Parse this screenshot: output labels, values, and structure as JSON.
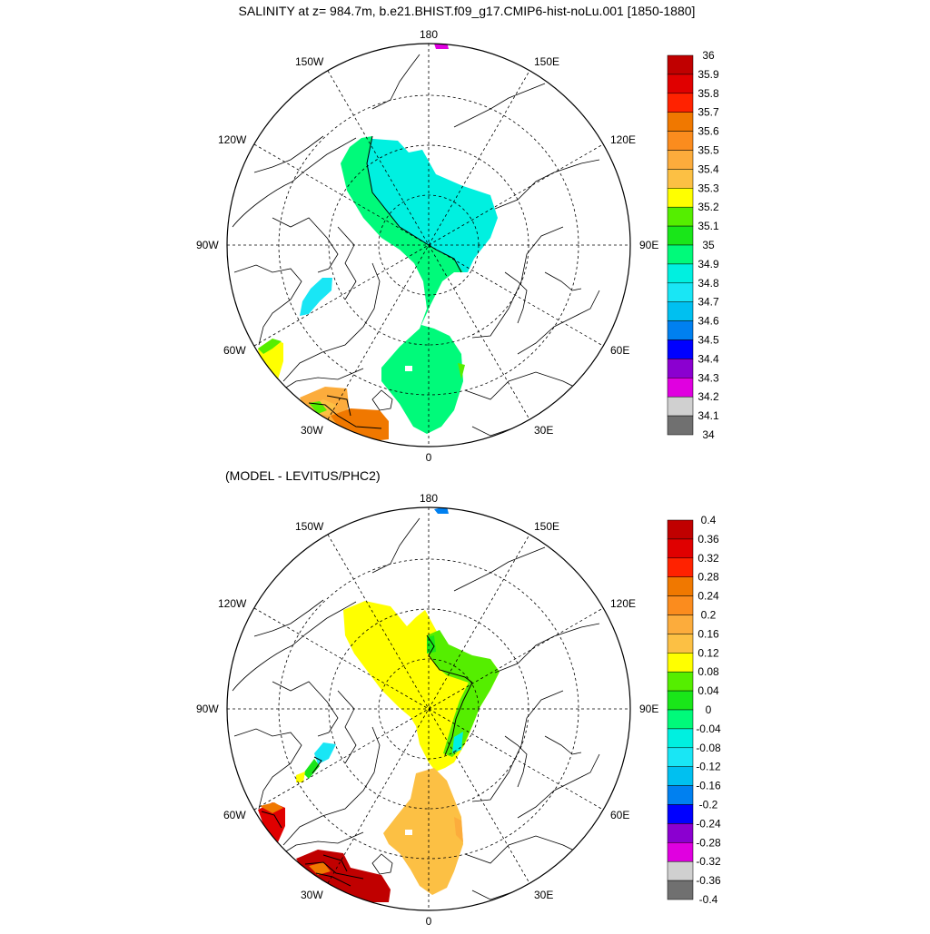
{
  "figure": {
    "title": "SALINITY at z= 984.7m, b.e21.BHIST.f09_g17.CMIP6-hist-noLu.001 [1850-1880]",
    "subtitle": "(MODEL - LEVITUS/PHC2)"
  },
  "longitude_labels": {
    "lon_180": "180",
    "lon_150w": "150W",
    "lon_150e": "150E",
    "lon_120w": "120W",
    "lon_120e": "120E",
    "lon_90w": "90W",
    "lon_90e": "90E",
    "lon_60w": "60W",
    "lon_60e": "60E",
    "lon_30w": "30W",
    "lon_30e": "30E",
    "lon_0": "0"
  },
  "colorbars": {
    "top": {
      "labels": [
        "36",
        "35.9",
        "35.8",
        "35.7",
        "35.6",
        "35.5",
        "35.4",
        "35.3",
        "35.2",
        "35.1",
        "35",
        "34.9",
        "34.8",
        "34.7",
        "34.6",
        "34.5",
        "34.4",
        "34.3",
        "34.2",
        "34.1",
        "34"
      ],
      "colors": [
        "#c00000",
        "#e00000",
        "#ff2200",
        "#f07800",
        "#fb8c1e",
        "#fcac3c",
        "#fcc044",
        "#ffff00",
        "#55ee00",
        "#19e619",
        "#00fa7a",
        "#00f0e0",
        "#19e6f5",
        "#00c0f0",
        "#0080f0",
        "#0000ff",
        "#8b00d0",
        "#e000e0",
        "#d0d0d0",
        "#707070"
      ]
    },
    "bottom": {
      "labels": [
        "0.4",
        "0.36",
        "0.32",
        "0.28",
        "0.24",
        "0.2",
        "0.16",
        "0.12",
        "0.08",
        "0.04",
        "0",
        "-0.04",
        "-0.08",
        "-0.12",
        "-0.16",
        "-0.2",
        "-0.24",
        "-0.28",
        "-0.32",
        "-0.36",
        "-0.4"
      ],
      "colors": [
        "#c00000",
        "#e00000",
        "#ff2200",
        "#f07800",
        "#fb8c1e",
        "#fcac3c",
        "#fcc044",
        "#ffff00",
        "#55ee00",
        "#19e619",
        "#00fa7a",
        "#00f0e0",
        "#19e6f5",
        "#00c0f0",
        "#0080f0",
        "#0000ff",
        "#8b00d0",
        "#e000e0",
        "#d0d0d0",
        "#707070"
      ]
    }
  }
}
